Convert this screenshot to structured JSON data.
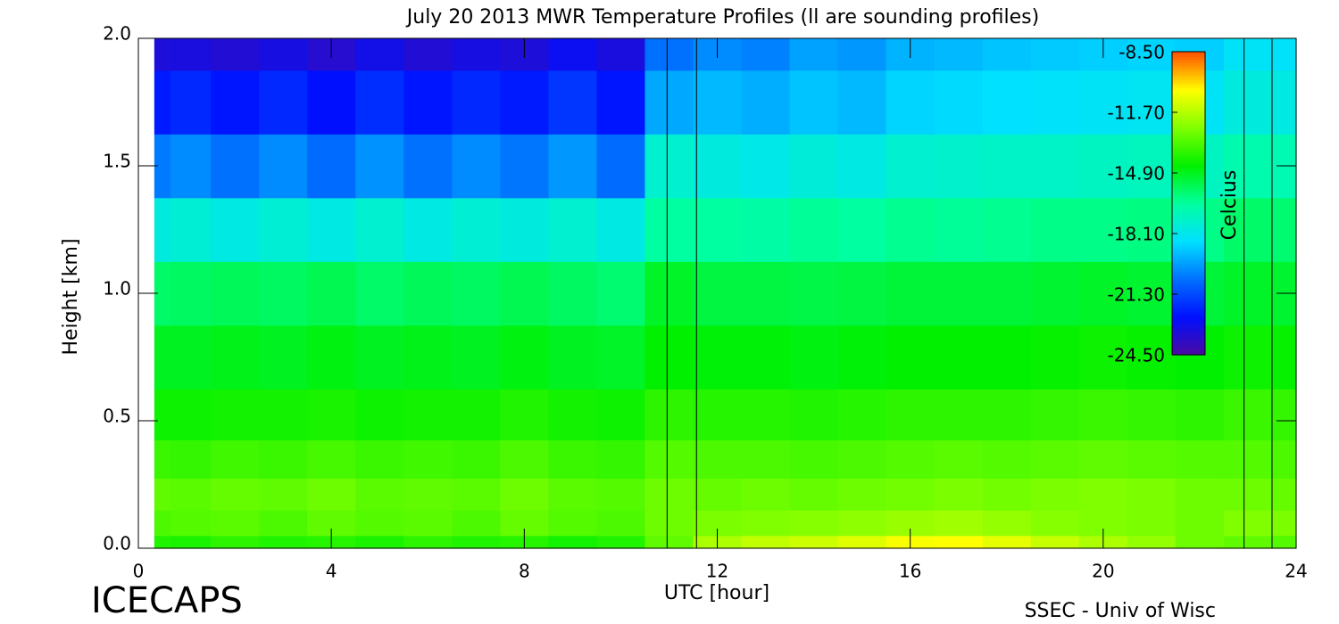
{
  "chart_data": {
    "type": "heatmap",
    "title": "July 20 2013 MWR Temperature Profiles (ll are sounding profiles)",
    "xlabel": "UTC [hour]",
    "ylabel": "Height [km]",
    "colorbar_label": "Celcius",
    "footer_left": "ICECAPS",
    "footer_right": "SSEC - Univ of Wisc",
    "xlim": [
      0,
      24
    ],
    "xticks": [
      0,
      4,
      8,
      12,
      16,
      20,
      24
    ],
    "ylim": [
      0,
      2
    ],
    "yticks": [
      {
        "value": 0,
        "label": "0.0"
      },
      {
        "value": 0.5,
        "label": "0.5"
      },
      {
        "value": 1,
        "label": "1.0"
      },
      {
        "value": 1.5,
        "label": "1.5"
      },
      {
        "value": 2,
        "label": "2.0"
      }
    ],
    "clim": [
      -24.5,
      -8.5
    ],
    "cticks": [
      {
        "value": -8.5,
        "label": "-8.50"
      },
      {
        "value": -11.7,
        "label": "-11.70"
      },
      {
        "value": -14.9,
        "label": "-14.90"
      },
      {
        "value": -18.1,
        "label": "-18.10"
      },
      {
        "value": -21.3,
        "label": "-21.30"
      },
      {
        "value": -24.5,
        "label": "-24.50"
      }
    ],
    "colorscale": [
      "#4b0aa0",
      "#0010ff",
      "#0070ff",
      "#00e0ff",
      "#00ffa0",
      "#00f000",
      "#80ff00",
      "#ffff00",
      "#ff5000"
    ],
    "sounding_times": [
      10.96,
      11.57,
      22.92,
      23.5
    ],
    "x": [
      0.33,
      1,
      2,
      3,
      4,
      5,
      6,
      7,
      8,
      9,
      10,
      11,
      12,
      13,
      14,
      15,
      16,
      17,
      18,
      19,
      20,
      21,
      22,
      23,
      24
    ],
    "heights": [
      0,
      0.1,
      0.2,
      0.35,
      0.5,
      0.75,
      1.0,
      1.25,
      1.5,
      1.75,
      2.0
    ],
    "values": [
      [
        -14.0,
        -14.1,
        -13.8,
        -14.0,
        -13.9,
        -14.1,
        -13.8,
        -14.0,
        -13.9,
        -14.2,
        -14.0,
        -13.0,
        -11.8,
        -11.5,
        -11.3,
        -11.0,
        -10.6,
        -10.5,
        -10.9,
        -11.4,
        -11.8,
        -12.2,
        -12.8,
        -13.0,
        -13.2
      ],
      [
        -13.3,
        -13.2,
        -13.1,
        -13.3,
        -13.0,
        -13.2,
        -13.1,
        -13.3,
        -12.9,
        -13.2,
        -13.3,
        -12.8,
        -12.6,
        -12.5,
        -12.4,
        -12.3,
        -12.1,
        -12.0,
        -12.2,
        -12.4,
        -12.5,
        -12.6,
        -12.8,
        -12.5,
        -12.6
      ],
      [
        -13.0,
        -13.1,
        -12.9,
        -13.0,
        -12.8,
        -13.1,
        -13.0,
        -13.1,
        -12.8,
        -13.1,
        -13.2,
        -12.8,
        -12.9,
        -12.8,
        -12.9,
        -12.8,
        -12.7,
        -12.6,
        -12.7,
        -12.6,
        -12.5,
        -12.6,
        -12.8,
        -12.8,
        -12.9
      ],
      [
        -13.6,
        -13.7,
        -13.5,
        -13.6,
        -13.4,
        -13.6,
        -13.5,
        -13.6,
        -13.3,
        -13.6,
        -13.7,
        -13.2,
        -13.3,
        -13.3,
        -13.4,
        -13.3,
        -13.2,
        -13.1,
        -13.2,
        -13.1,
        -13.0,
        -13.1,
        -13.2,
        -13.2,
        -13.3
      ],
      [
        -14.3,
        -14.3,
        -14.2,
        -14.2,
        -14.1,
        -14.3,
        -14.2,
        -14.2,
        -14.0,
        -14.2,
        -14.3,
        -13.8,
        -13.9,
        -13.9,
        -14.0,
        -13.9,
        -13.8,
        -13.8,
        -13.8,
        -13.7,
        -13.6,
        -13.7,
        -13.8,
        -13.6,
        -13.7
      ],
      [
        -14.9,
        -14.9,
        -14.8,
        -14.9,
        -14.7,
        -14.9,
        -14.8,
        -14.9,
        -14.7,
        -14.9,
        -15.0,
        -14.5,
        -14.6,
        -14.6,
        -14.7,
        -14.6,
        -14.5,
        -14.5,
        -14.5,
        -14.4,
        -14.3,
        -14.4,
        -14.5,
        -14.3,
        -14.4
      ],
      [
        -15.8,
        -15.7,
        -15.6,
        -15.7,
        -15.5,
        -15.8,
        -15.6,
        -15.7,
        -15.5,
        -15.7,
        -15.9,
        -15.0,
        -15.3,
        -15.3,
        -15.4,
        -15.3,
        -15.2,
        -15.2,
        -15.2,
        -15.1,
        -15.0,
        -15.1,
        -15.2,
        -15.0,
        -15.1
      ],
      [
        -17.8,
        -17.6,
        -17.9,
        -17.6,
        -17.9,
        -17.5,
        -17.9,
        -17.6,
        -17.8,
        -17.5,
        -17.9,
        -16.5,
        -16.5,
        -16.6,
        -16.4,
        -16.5,
        -16.3,
        -16.4,
        -16.3,
        -16.2,
        -16.2,
        -16.1,
        -16.2,
        -15.8,
        -15.9
      ],
      [
        -20.3,
        -20.0,
        -20.5,
        -20.0,
        -20.6,
        -19.9,
        -20.5,
        -20.0,
        -20.4,
        -19.8,
        -20.6,
        -17.5,
        -17.8,
        -18.0,
        -17.7,
        -17.9,
        -17.5,
        -17.4,
        -17.3,
        -17.3,
        -17.2,
        -17.1,
        -17.2,
        -16.8,
        -16.9
      ],
      [
        -22.3,
        -22.0,
        -22.4,
        -22.0,
        -22.5,
        -21.9,
        -22.4,
        -22.0,
        -22.3,
        -21.7,
        -22.4,
        -19.5,
        -19.2,
        -19.4,
        -19.0,
        -19.2,
        -18.7,
        -18.6,
        -18.5,
        -18.4,
        -18.3,
        -18.2,
        -18.3,
        -17.8,
        -17.9
      ],
      [
        -23.3,
        -23.2,
        -23.4,
        -23.1,
        -23.5,
        -23.0,
        -23.4,
        -23.1,
        -23.3,
        -22.8,
        -23.2,
        -20.5,
        -20.0,
        -20.2,
        -19.6,
        -19.8,
        -19.3,
        -19.2,
        -19.0,
        -18.9,
        -18.8,
        -18.7,
        -18.8,
        -18.3,
        -18.4
      ]
    ]
  }
}
